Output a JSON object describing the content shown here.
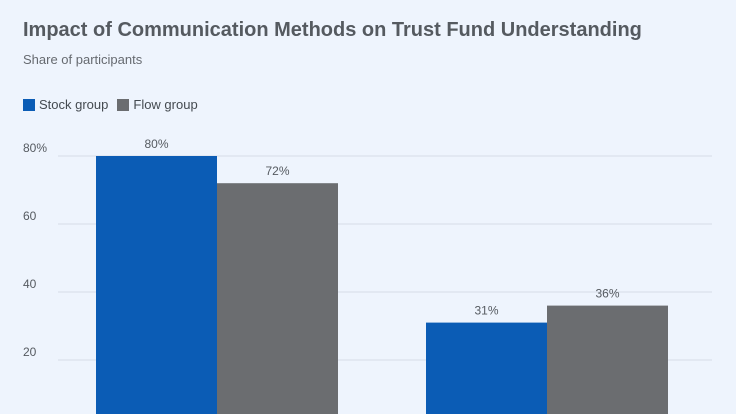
{
  "chart_data": {
    "type": "bar",
    "title": "Impact of Communication Methods on Trust Fund Understanding",
    "subtitle": "Share of participants",
    "categories": [
      "",
      ""
    ],
    "series": [
      {
        "name": "Stock group",
        "color": "#0b5cb5",
        "values": [
          80,
          31
        ],
        "labels": [
          "80%",
          "31%"
        ]
      },
      {
        "name": "Flow group",
        "color": "#6b6d70",
        "values": [
          72,
          36
        ],
        "labels": [
          "72%",
          "36%"
        ]
      }
    ],
    "yticks": [
      {
        "value": 20,
        "label": "20"
      },
      {
        "value": 40,
        "label": "40"
      },
      {
        "value": 60,
        "label": "60"
      },
      {
        "value": 80,
        "label": "80%"
      }
    ],
    "ylim": [
      0,
      80
    ],
    "legend": "top-left",
    "grid": true
  }
}
